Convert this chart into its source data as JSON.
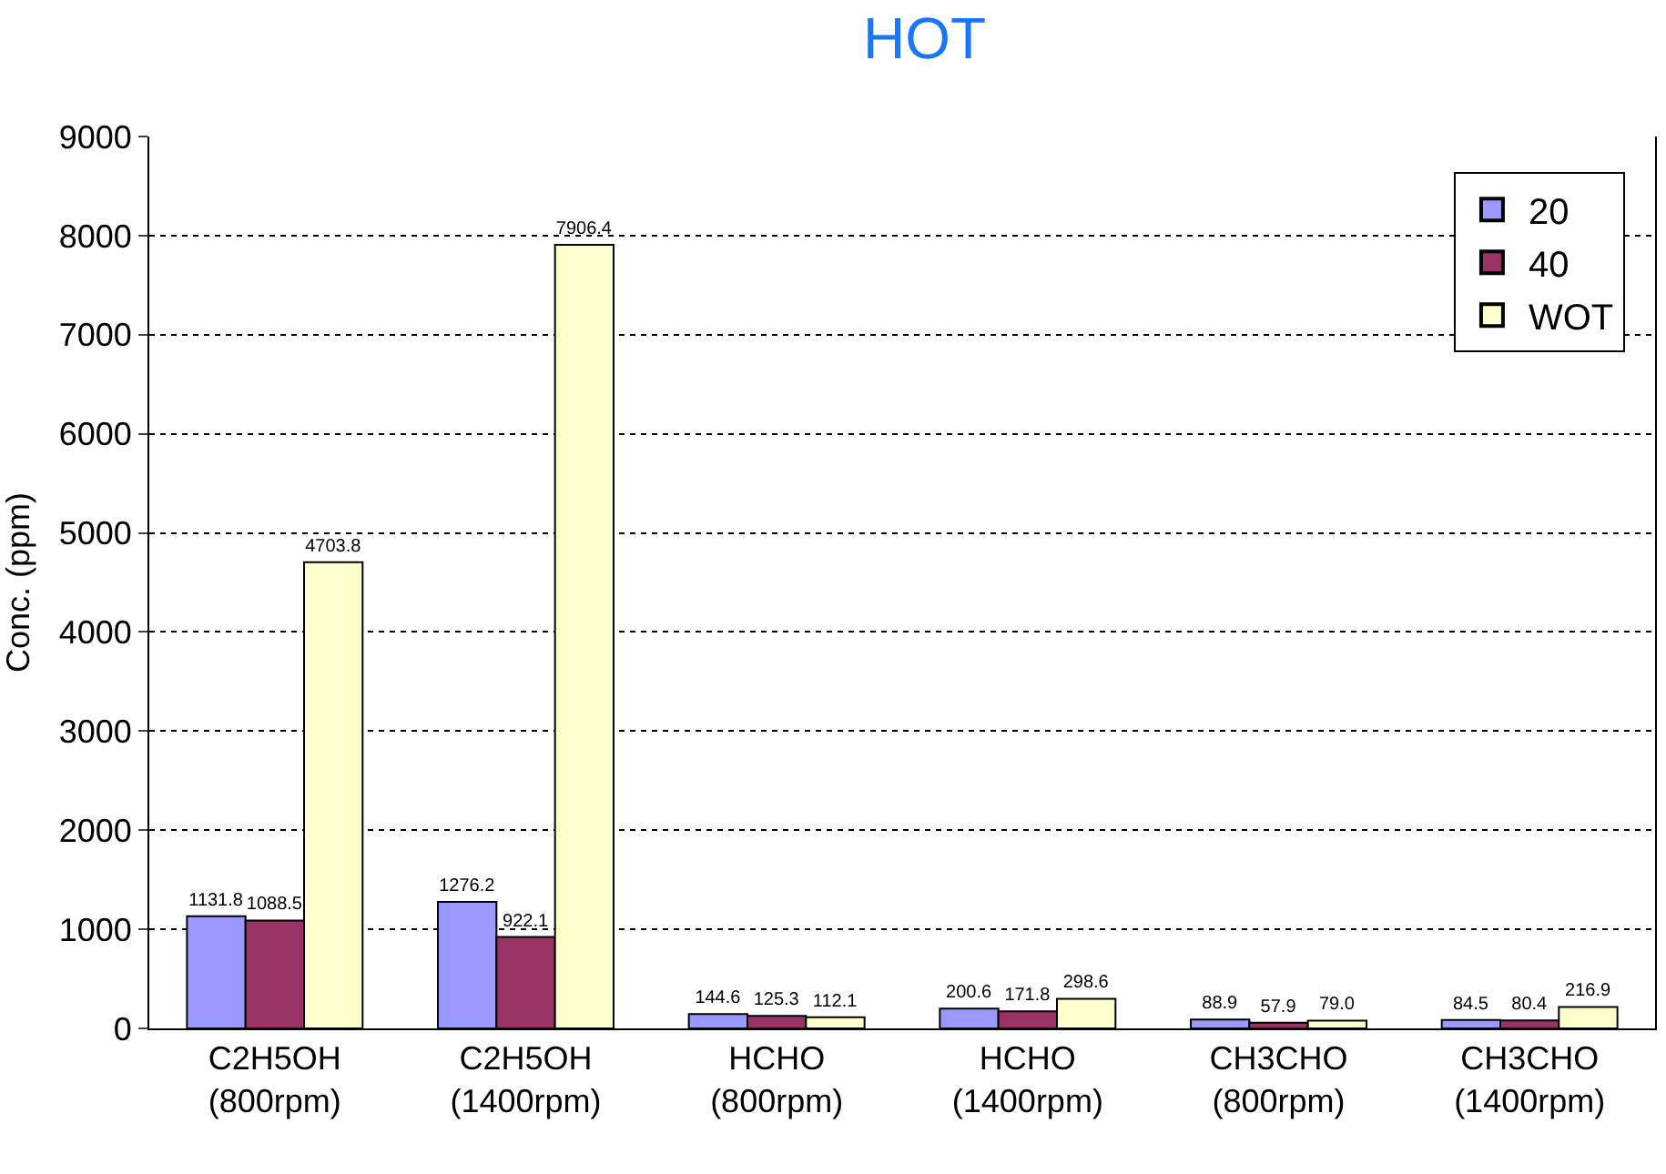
{
  "chart_data": {
    "type": "bar",
    "title": "HOT",
    "ylabel": "Conc. (ppm)",
    "categories": [
      "C2H5OH\n(800rpm)",
      "C2H5OH\n(1400rpm)",
      "HCHO\n(800rpm)",
      "HCHO\n(1400rpm)",
      "CH3CHO\n(800rpm)",
      "CH3CHO\n(1400rpm)"
    ],
    "series": [
      {
        "name": "20",
        "color": "#9999ff",
        "values": [
          1131.8,
          1276.2,
          144.6,
          200.6,
          88.9,
          84.5
        ],
        "value_labels": [
          "1131.8",
          "1276.2",
          "144.6",
          "200.6",
          "88.9",
          "84.5"
        ]
      },
      {
        "name": "40",
        "color": "#993366",
        "values": [
          1088.5,
          922.1,
          125.3,
          171.8,
          57.9,
          80.4
        ],
        "value_labels": [
          "1088.5",
          "922.1",
          "125.3",
          "171.8",
          "57.9",
          "80.4"
        ]
      },
      {
        "name": "WOT",
        "color": "#ffffcc",
        "values": [
          4703.8,
          7906.4,
          112.1,
          298.6,
          79.0,
          216.9
        ],
        "value_labels": [
          "4703.8",
          "7906.4",
          "112.1",
          "298.6",
          "79.0",
          "216.9"
        ]
      }
    ],
    "ylim": [
      0,
      9000
    ],
    "yticks": [
      0,
      1000,
      2000,
      3000,
      4000,
      5000,
      6000,
      7000,
      8000,
      9000
    ],
    "grid": "y",
    "legend": "top right"
  }
}
